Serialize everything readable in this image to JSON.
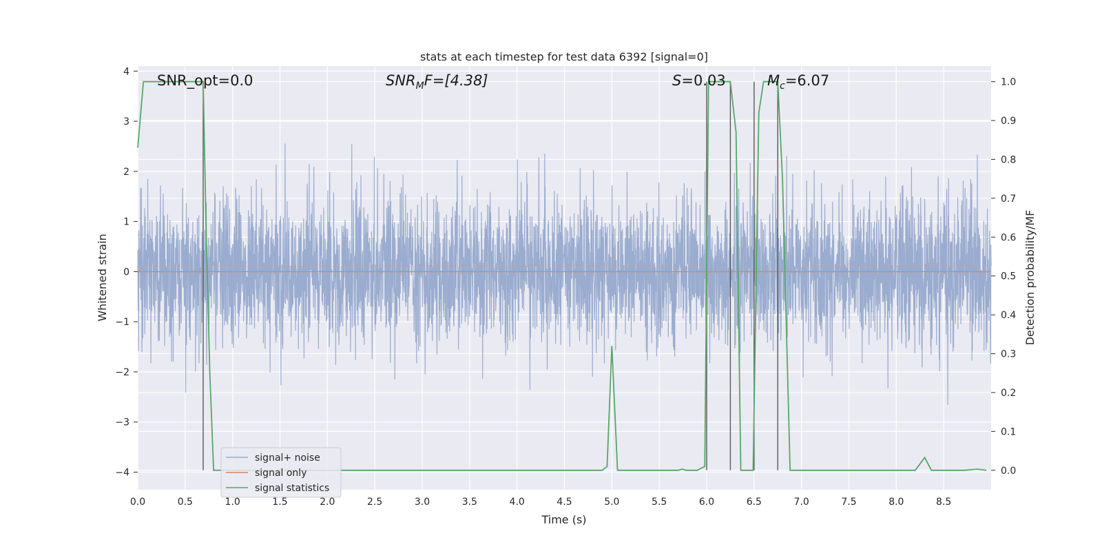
{
  "chart_data": {
    "type": "line",
    "title": "stats at each timestep for test data 6392 [signal=0]",
    "xlabel": "Time (s)",
    "ylabel": "Whitened strain",
    "y2label": "Detection probability/MF",
    "xlim": [
      0.0,
      9.0
    ],
    "ylim": [
      -4.35,
      4.1
    ],
    "y2lim": [
      -0.05,
      1.04
    ],
    "xticks": [
      0.0,
      0.5,
      1.0,
      1.5,
      2.0,
      2.5,
      3.0,
      3.5,
      4.0,
      4.5,
      5.0,
      5.5,
      6.0,
      6.5,
      7.0,
      7.5,
      8.0,
      8.5
    ],
    "xtick_labels": [
      "0.0",
      "0.5",
      "1.0",
      "1.5",
      "2.0",
      "2.5",
      "3.0",
      "3.5",
      "4.0",
      "4.5",
      "5.0",
      "5.5",
      "6.0",
      "6.5",
      "7.0",
      "7.5",
      "8.0",
      "8.5"
    ],
    "yticks": [
      4,
      3,
      2,
      1,
      0,
      -1,
      -2,
      -3,
      -4
    ],
    "ytick_labels": [
      "4",
      "3",
      "2",
      "1",
      "0",
      "−1",
      "−2",
      "−3",
      "−4"
    ],
    "y2ticks": [
      1.0,
      0.9,
      0.8,
      0.7,
      0.6,
      0.5,
      0.4,
      0.3,
      0.2,
      0.1,
      0.0
    ],
    "y2tick_labels": [
      "1.0",
      "0.9",
      "0.8",
      "0.7",
      "0.6",
      "0.5",
      "0.4",
      "0.3",
      "0.2",
      "0.1",
      "0.0"
    ],
    "grid": true,
    "legend_position": "lower-left",
    "annotations": {
      "snr_opt": "SNR_opt=0.0",
      "snr_mf_var": "SNR",
      "snr_mf_sub": "M",
      "snr_mf_rest": "F=[4.38]",
      "s_var": "S",
      "s_rest": "=0.03",
      "mc_var": "M",
      "mc_sub": "c",
      "mc_rest": "=6.07"
    },
    "series": [
      {
        "name": "signal+ noise",
        "color": "#9aaccf",
        "kind": "noise",
        "sigma": 0.72,
        "samples": 4096
      },
      {
        "name": "signal only",
        "color": "#dd8452",
        "values_constant": 0.0
      },
      {
        "name": "signal statistics",
        "color": "#55a868",
        "axis": "right",
        "x": [
          0.0,
          0.06,
          0.12,
          0.66,
          0.69,
          0.72,
          0.76,
          0.8,
          0.82,
          4.9,
          4.95,
          5.0,
          5.06,
          5.7,
          5.74,
          5.78,
          5.9,
          5.98,
          6.02,
          6.06,
          6.25,
          6.31,
          6.36,
          6.49,
          6.55,
          6.6,
          6.75,
          6.8,
          6.88,
          8.2,
          8.3,
          8.37,
          8.72,
          8.85,
          8.95
        ],
        "values": [
          0.83,
          1.0,
          1.0,
          1.0,
          1.0,
          0.63,
          0.25,
          0.0,
          0.0,
          0.0,
          0.01,
          0.32,
          0.0,
          0.0,
          0.003,
          0.0,
          0.0,
          0.01,
          1.0,
          1.0,
          1.0,
          0.87,
          0.0,
          0.0,
          0.92,
          1.0,
          1.0,
          0.75,
          0.0,
          0.0,
          0.033,
          0.0,
          0.0,
          0.003,
          0.0
        ]
      }
    ],
    "vertical_lines": [
      {
        "x": 0.69,
        "ymin": 0.0,
        "ymax": 1.0
      },
      {
        "x": 6.0,
        "ymin": 0.0,
        "ymax": 1.0
      },
      {
        "x": 6.25,
        "ymin": 0.0,
        "ymax": 1.0
      },
      {
        "x": 6.5,
        "ymin": 0.0,
        "ymax": 1.0
      },
      {
        "x": 6.75,
        "ymin": 0.0,
        "ymax": 1.0
      }
    ]
  },
  "colors": {
    "plot_background": "#eaeaf2",
    "grid": "#ffffff",
    "vline": "#595959"
  }
}
